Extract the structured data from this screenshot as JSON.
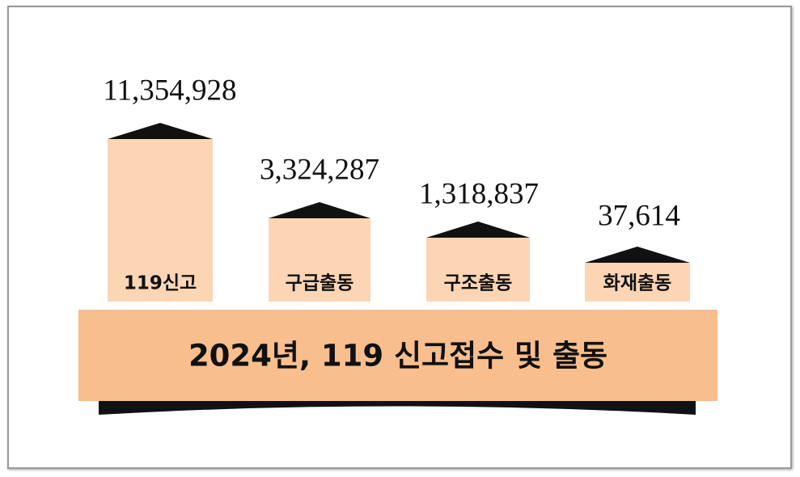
{
  "title": "2024년, 119 신고접수 및 출동",
  "items": [
    {
      "label": "119신고",
      "value": "11,354,928"
    },
    {
      "label": "구급출동",
      "value": "3,324,287"
    },
    {
      "label": "구조출동",
      "value": "1,318,837"
    },
    {
      "label": "화재출동",
      "value": "37,614"
    }
  ]
}
